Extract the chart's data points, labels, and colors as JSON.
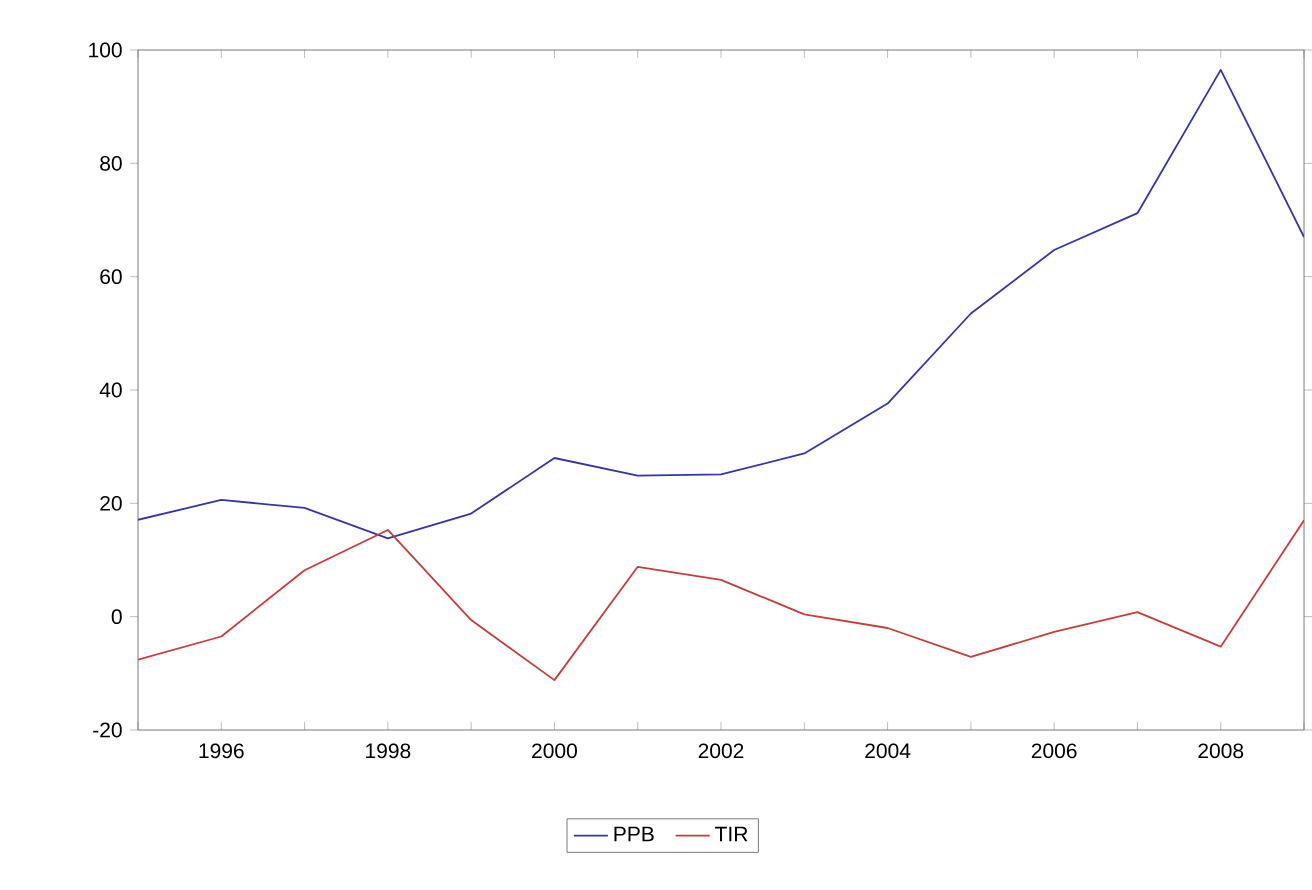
{
  "chart_data": {
    "type": "line",
    "x": [
      1995,
      1996,
      1997,
      1998,
      1999,
      2000,
      2001,
      2002,
      2003,
      2004,
      2005,
      2006,
      2007,
      2008,
      2009
    ],
    "series": [
      {
        "name": "PPB",
        "color": "#3535a8",
        "values": [
          17.1,
          20.6,
          19.2,
          13.8,
          18.2,
          28,
          24.9,
          25.1,
          28.8,
          37.6,
          53.5,
          64.7,
          71.2,
          96.5,
          67
        ]
      },
      {
        "name": "TIR",
        "color": "#c83c3c",
        "values": [
          -7.6,
          -3.5,
          8.2,
          15.3,
          -0.6,
          -11.2,
          8.8,
          6.5,
          0.4,
          -2,
          -7.1,
          -2.7,
          0.8,
          -5.3,
          17
        ]
      }
    ],
    "xlim": [
      1995,
      2009
    ],
    "ylim": [
      -20,
      100
    ],
    "xticks": [
      {
        "value": 1995,
        "label": null
      },
      1996,
      {
        "value": 1997,
        "label": null
      },
      1998,
      {
        "value": 1999,
        "label": null
      },
      2000,
      {
        "value": 2001,
        "label": null
      },
      2002,
      {
        "value": 2003,
        "label": null
      },
      2004,
      {
        "value": 2005,
        "label": null
      },
      2006,
      {
        "value": 2007,
        "label": null
      },
      2008,
      {
        "value": 2009,
        "label": null
      }
    ],
    "yticks": [
      -20,
      0,
      20,
      40,
      60,
      80,
      100
    ],
    "grid": false,
    "legend": "bottom",
    "marker": "none",
    "line_style": "solid"
  }
}
